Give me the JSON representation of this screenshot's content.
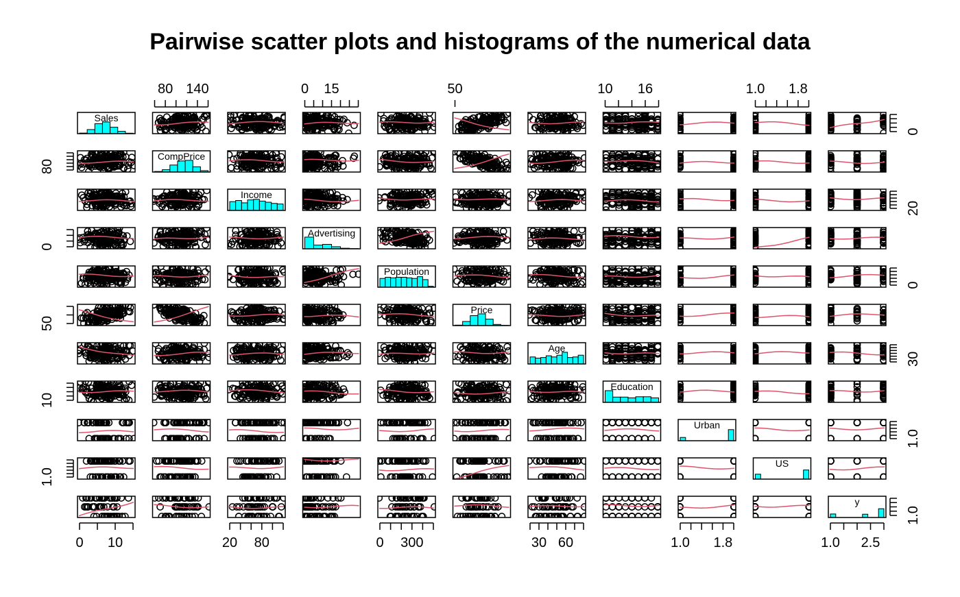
{
  "chart_data": {
    "type": "scatter",
    "subtype": "pairs-matrix",
    "title": "Pairwise scatter plots and histograms of the numerical data",
    "variables": [
      "Sales",
      "CompPrice",
      "Income",
      "Advertising",
      "Population",
      "Price",
      "Age",
      "Education",
      "Urban",
      "US",
      "y"
    ],
    "diagonal": "histogram",
    "off_diagonal": "scatter with smoother",
    "colors": {
      "points": "#000000",
      "smoother": "#DF536B",
      "histogram": "#00FFFF"
    },
    "top_axis_ticks": [
      {
        "column": 1,
        "labels": [
          "80",
          "140"
        ],
        "major": [
          80,
          140
        ],
        "minor": [
          60,
          80,
          100,
          120,
          140,
          160
        ]
      },
      {
        "column": 3,
        "labels": [
          "0",
          "15"
        ],
        "major": [
          0,
          15
        ],
        "minor": [
          0,
          5,
          10,
          15,
          20,
          25,
          30
        ]
      },
      {
        "column": 5,
        "labels": [
          "50"
        ],
        "major": [
          50
        ],
        "minor": []
      },
      {
        "column": 7,
        "labels": [
          "10",
          "16"
        ],
        "major": [
          10,
          16
        ],
        "minor": [
          10,
          12,
          14,
          16,
          18
        ]
      },
      {
        "column": 9,
        "labels": [
          "1.0",
          "1.8"
        ],
        "major": [
          1.0,
          1.8
        ],
        "minor": [
          1.0,
          1.2,
          1.4,
          1.6,
          1.8,
          2.0
        ]
      }
    ],
    "bottom_axis_ticks": [
      {
        "column": 0,
        "labels": [
          "0",
          "10"
        ],
        "major": [
          0,
          10
        ],
        "minor": [
          0,
          5,
          10,
          15
        ]
      },
      {
        "column": 2,
        "labels": [
          "20",
          "80"
        ],
        "major": [
          20,
          80
        ],
        "minor": [
          20,
          40,
          60,
          80,
          100,
          120
        ]
      },
      {
        "column": 4,
        "labels": [
          "0",
          "300"
        ],
        "major": [
          0,
          300
        ],
        "minor": [
          0,
          100,
          200,
          300,
          400,
          500
        ]
      },
      {
        "column": 6,
        "labels": [
          "30",
          "60"
        ],
        "major": [
          30,
          60
        ],
        "minor": [
          20,
          30,
          40,
          50,
          60,
          70,
          80
        ]
      },
      {
        "column": 8,
        "labels": [
          "1.0",
          "1.8"
        ],
        "major": [
          1.0,
          1.8
        ],
        "minor": [
          1.0,
          1.2,
          1.4,
          1.6,
          1.8,
          2.0
        ]
      },
      {
        "column": 10,
        "labels": [
          "1.0",
          "2.5"
        ],
        "major": [
          1.0,
          2.5
        ],
        "minor": [
          1.0,
          1.5,
          2.0,
          2.5,
          3.0
        ]
      }
    ],
    "left_axis_ticks": [
      {
        "row": 1,
        "labels": [
          "80"
        ],
        "major": [
          80
        ],
        "minor": [
          60,
          80,
          100,
          120,
          140,
          160
        ]
      },
      {
        "row": 3,
        "labels": [
          "0"
        ],
        "major": [
          0
        ],
        "minor": [
          0,
          10,
          20,
          30
        ]
      },
      {
        "row": 5,
        "labels": [
          "50"
        ],
        "major": [
          50
        ],
        "minor": [
          50,
          100,
          150
        ]
      },
      {
        "row": 7,
        "labels": [
          "10"
        ],
        "major": [
          10
        ],
        "minor": [
          10,
          12,
          14,
          16,
          18
        ]
      },
      {
        "row": 9,
        "labels": [
          "1.0"
        ],
        "major": [
          1.0
        ],
        "minor": [
          1.0,
          1.2,
          1.4,
          1.6,
          1.8,
          2.0
        ]
      }
    ],
    "right_axis_ticks": [
      {
        "row": 0,
        "labels": [
          "0"
        ],
        "major": [
          0
        ],
        "minor": [
          0,
          4,
          8,
          12,
          16
        ]
      },
      {
        "row": 2,
        "labels": [
          "20"
        ],
        "major": [
          20
        ],
        "minor": [
          20,
          40,
          60,
          80,
          100,
          120
        ]
      },
      {
        "row": 4,
        "labels": [
          "0"
        ],
        "major": [
          0
        ],
        "minor": [
          0,
          100,
          200,
          300,
          400,
          500
        ]
      },
      {
        "row": 6,
        "labels": [
          "30"
        ],
        "major": [
          30
        ],
        "minor": [
          20,
          30,
          40,
          50,
          60,
          70,
          80
        ]
      },
      {
        "row": 8,
        "labels": [
          "1.0"
        ],
        "major": [
          1.0
        ],
        "minor": [
          1.0,
          1.2,
          1.4,
          1.6,
          1.8,
          2.0
        ]
      },
      {
        "row": 10,
        "labels": [
          "1.0"
        ],
        "major": [
          1.0
        ],
        "minor": [
          1.0,
          1.5,
          2.0,
          2.5,
          3.0
        ]
      }
    ]
  }
}
